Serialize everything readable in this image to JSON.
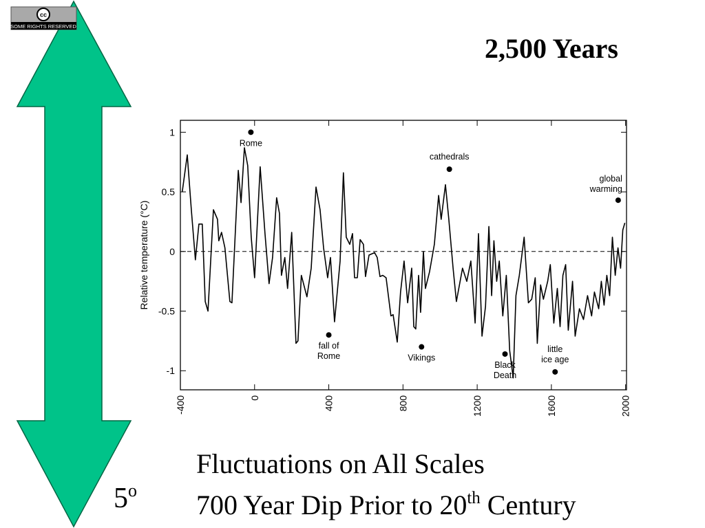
{
  "slide": {
    "badge": "SOME RIGHTS RESERVED",
    "badge_mark": "cc",
    "title": "2,500 Years",
    "scale_label": {
      "text": "5",
      "sup": "o"
    },
    "lines": [
      {
        "text": "Fluctuations on All Scales"
      },
      {
        "text": "700 Year Dip Prior to 20",
        "sup": "th",
        "after": " Century"
      }
    ]
  },
  "chart_data": {
    "type": "line",
    "y_label": "Relative temperature (°C)",
    "color": "#000000",
    "xlim": [
      -400,
      2005
    ],
    "ylim": [
      -1.16,
      1.1
    ],
    "xticks": [
      -400,
      0,
      400,
      800,
      1200,
      1600,
      2000
    ],
    "yticks": [
      1,
      0.5,
      0,
      -0.5,
      -1
    ],
    "reference_line": 0,
    "x": [
      -390,
      -363,
      -341,
      -319,
      -300,
      -282,
      -266,
      -251,
      -222,
      -200,
      -193,
      -178,
      -160,
      -133,
      -122,
      -88,
      -73,
      -55,
      -37,
      -18,
      0,
      30,
      56,
      78,
      97,
      119,
      134,
      145,
      163,
      178,
      200,
      223,
      234,
      252,
      282,
      305,
      331,
      353,
      372,
      394,
      409,
      431,
      461,
      479,
      494,
      513,
      528,
      539,
      554,
      569,
      587,
      598,
      617,
      647,
      661,
      676,
      691,
      709,
      735,
      747,
      769,
      787,
      806,
      825,
      847,
      858,
      869,
      884,
      895,
      910,
      921,
      943,
      969,
      992,
      1006,
      1029,
      1047,
      1070,
      1088,
      1121,
      1144,
      1166,
      1189,
      1207,
      1226,
      1245,
      1263,
      1278,
      1290,
      1305,
      1319,
      1338,
      1357,
      1375,
      1394,
      1409,
      1427,
      1453,
      1476,
      1494,
      1513,
      1524,
      1542,
      1557,
      1580,
      1594,
      1613,
      1632,
      1647,
      1662,
      1677,
      1691,
      1714,
      1728,
      1751,
      1773,
      1795,
      1817,
      1832,
      1855,
      1869,
      1884,
      1899,
      1914,
      1929,
      1944,
      1959,
      1973,
      1985,
      1996
    ],
    "values": [
      0.5,
      0.81,
      0.35,
      -0.07,
      0.23,
      0.23,
      -0.42,
      -0.5,
      0.35,
      0.27,
      0.09,
      0.16,
      0.03,
      -0.42,
      -0.43,
      0.68,
      0.41,
      0.87,
      0.72,
      0.12,
      -0.22,
      0.71,
      0.15,
      -0.27,
      -0.05,
      0.45,
      0.32,
      -0.2,
      -0.05,
      -0.31,
      0.16,
      -0.77,
      -0.75,
      -0.2,
      -0.38,
      -0.14,
      0.54,
      0.35,
      0.03,
      -0.22,
      -0.05,
      -0.59,
      -0.08,
      0.66,
      0.12,
      0.06,
      0.15,
      -0.22,
      -0.22,
      0.1,
      0.06,
      -0.21,
      -0.03,
      -0.01,
      -0.05,
      -0.21,
      -0.2,
      -0.22,
      -0.54,
      -0.53,
      -0.76,
      -0.34,
      -0.08,
      -0.43,
      -0.14,
      -0.63,
      -0.65,
      -0.2,
      -0.51,
      0.0,
      -0.31,
      -0.17,
      0.06,
      0.47,
      0.27,
      0.56,
      0.27,
      -0.14,
      -0.42,
      -0.14,
      -0.25,
      -0.08,
      -0.6,
      0.15,
      -0.71,
      -0.46,
      0.21,
      -0.37,
      0.09,
      -0.25,
      -0.08,
      -0.54,
      -0.2,
      -0.83,
      -1.06,
      -0.37,
      -0.2,
      0.12,
      -0.43,
      -0.4,
      -0.22,
      -0.77,
      -0.28,
      -0.4,
      -0.25,
      -0.11,
      -0.6,
      -0.31,
      -0.63,
      -0.2,
      -0.11,
      -0.66,
      -0.25,
      -0.71,
      -0.48,
      -0.57,
      -0.37,
      -0.54,
      -0.34,
      -0.48,
      -0.25,
      -0.45,
      -0.2,
      -0.37,
      0.12,
      -0.2,
      0.03,
      -0.14,
      0.18,
      0.24
    ],
    "annotations": [
      {
        "x": -20,
        "y": 1.0,
        "label": [
          "Rome"
        ],
        "pos": "below"
      },
      {
        "x": 1050,
        "y": 0.69,
        "label": [
          "cathedrals"
        ],
        "pos": "above"
      },
      {
        "x": 1960,
        "y": 0.43,
        "label": [
          "global",
          "warming"
        ],
        "pos": "above-left"
      },
      {
        "x": 400,
        "y": -0.7,
        "label": [
          "fall of",
          "Rome"
        ],
        "pos": "below"
      },
      {
        "x": 900,
        "y": -0.8,
        "label": [
          "Vikings"
        ],
        "pos": "below"
      },
      {
        "x": 1350,
        "y": -0.86,
        "label": [
          "Black",
          "Death"
        ],
        "pos": "below"
      },
      {
        "x": 1620,
        "y": -1.01,
        "label": [
          "little",
          "ice age"
        ],
        "pos": "above"
      }
    ]
  }
}
